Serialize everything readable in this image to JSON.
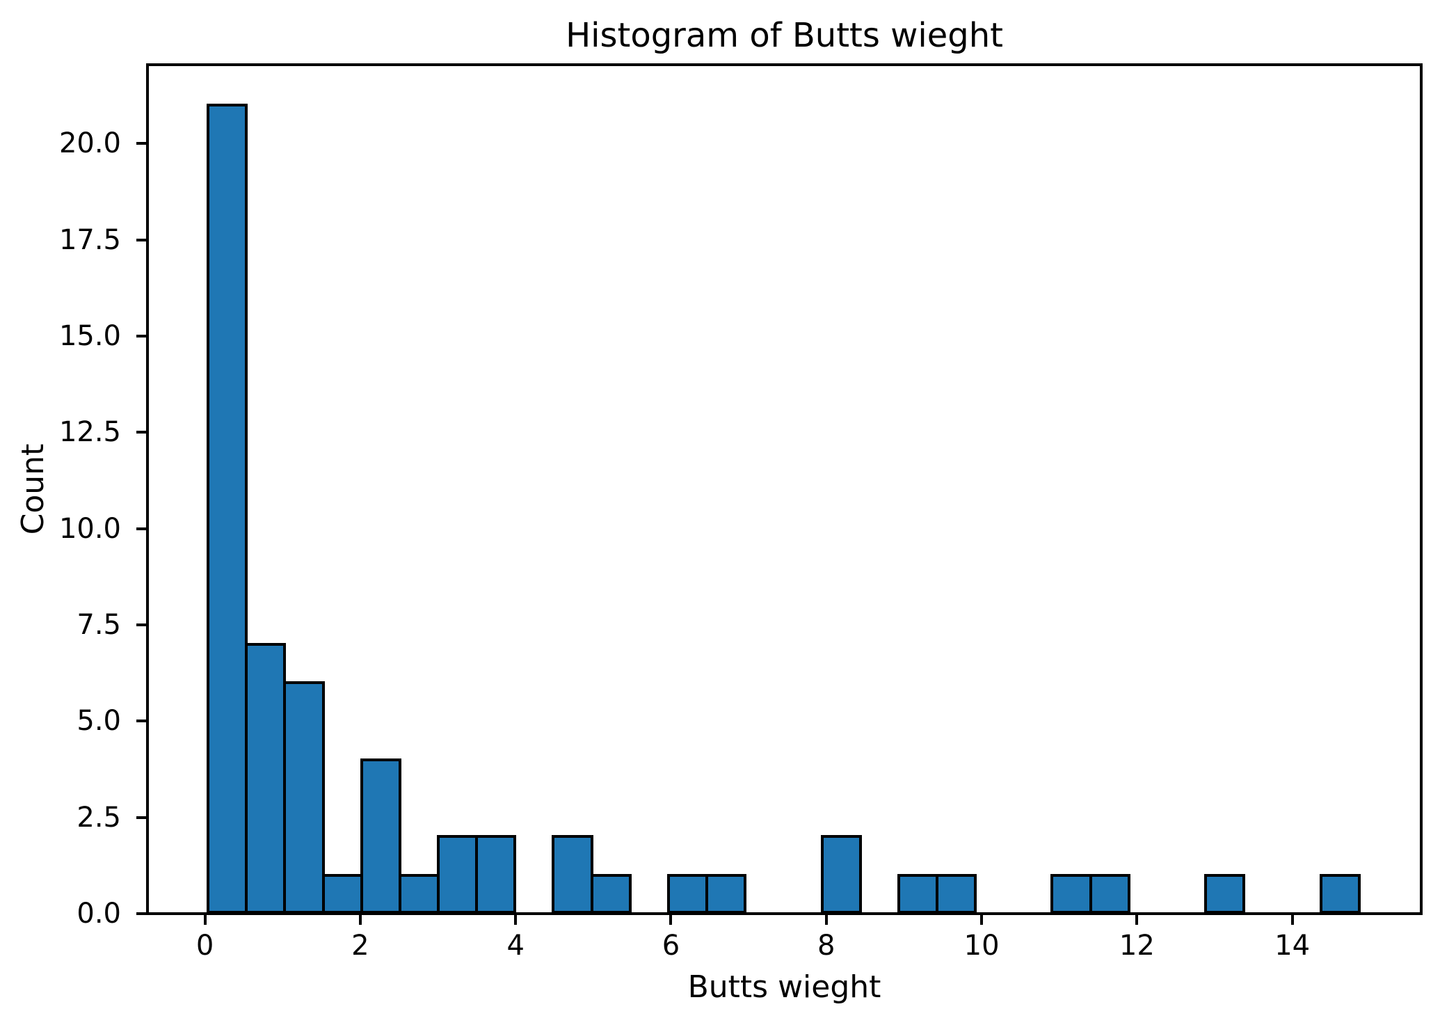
{
  "chart_data": {
    "type": "bar",
    "subtype": "histogram",
    "title": "Histogram of Butts wieght",
    "xlabel": "Butts wieght",
    "ylabel": "Count",
    "bin_start": 0.04,
    "bin_width": 0.494,
    "counts": [
      21,
      7,
      6,
      1,
      4,
      1,
      2,
      2,
      0,
      2,
      1,
      0,
      1,
      1,
      0,
      0,
      2,
      0,
      1,
      1,
      0,
      0,
      1,
      1,
      0,
      0,
      1,
      0,
      0,
      1
    ],
    "bins": [
      {
        "from": 0.04,
        "to": 0.534,
        "count": 21
      },
      {
        "from": 0.534,
        "to": 1.028,
        "count": 7
      },
      {
        "from": 1.028,
        "to": 1.522,
        "count": 6
      },
      {
        "from": 1.522,
        "to": 2.016,
        "count": 1
      },
      {
        "from": 2.016,
        "to": 2.51,
        "count": 4
      },
      {
        "from": 2.51,
        "to": 3.004,
        "count": 1
      },
      {
        "from": 3.004,
        "to": 3.498,
        "count": 2
      },
      {
        "from": 3.498,
        "to": 3.992,
        "count": 2
      },
      {
        "from": 3.992,
        "to": 4.486,
        "count": 0
      },
      {
        "from": 4.486,
        "to": 4.98,
        "count": 2
      },
      {
        "from": 4.98,
        "to": 5.474,
        "count": 1
      },
      {
        "from": 5.474,
        "to": 5.968,
        "count": 0
      },
      {
        "from": 5.968,
        "to": 6.462,
        "count": 1
      },
      {
        "from": 6.462,
        "to": 6.956,
        "count": 1
      },
      {
        "from": 6.956,
        "to": 7.45,
        "count": 0
      },
      {
        "from": 7.45,
        "to": 7.944,
        "count": 0
      },
      {
        "from": 7.944,
        "to": 8.438,
        "count": 2
      },
      {
        "from": 8.438,
        "to": 8.932,
        "count": 0
      },
      {
        "from": 8.932,
        "to": 9.426,
        "count": 1
      },
      {
        "from": 9.426,
        "to": 9.92,
        "count": 1
      },
      {
        "from": 9.92,
        "to": 10.414,
        "count": 0
      },
      {
        "from": 10.414,
        "to": 10.908,
        "count": 0
      },
      {
        "from": 10.908,
        "to": 11.402,
        "count": 1
      },
      {
        "from": 11.402,
        "to": 11.896,
        "count": 1
      },
      {
        "from": 11.896,
        "to": 12.39,
        "count": 0
      },
      {
        "from": 12.39,
        "to": 12.884,
        "count": 0
      },
      {
        "from": 12.884,
        "to": 13.378,
        "count": 1
      },
      {
        "from": 13.378,
        "to": 13.872,
        "count": 0
      },
      {
        "from": 13.872,
        "to": 14.366,
        "count": 0
      },
      {
        "from": 14.366,
        "to": 14.86,
        "count": 1
      }
    ],
    "xlim": [
      -0.74,
      15.66
    ],
    "ylim": [
      0,
      22.05
    ],
    "x_ticks": [
      0,
      2,
      4,
      6,
      8,
      10,
      12,
      14
    ],
    "x_tick_labels": [
      "0",
      "2",
      "4",
      "6",
      "8",
      "10",
      "12",
      "14"
    ],
    "y_ticks": [
      0.0,
      2.5,
      5.0,
      7.5,
      10.0,
      12.5,
      15.0,
      17.5,
      20.0
    ],
    "y_tick_labels": [
      "0.0",
      "2.5",
      "5.0",
      "7.5",
      "10.0",
      "12.5",
      "15.0",
      "17.5",
      "20.0"
    ],
    "grid": false,
    "legend": null,
    "bar_color": "#1f77b4",
    "bar_edge_color": "#000000",
    "axis_color": "#000000",
    "background_color": "#ffffff"
  }
}
